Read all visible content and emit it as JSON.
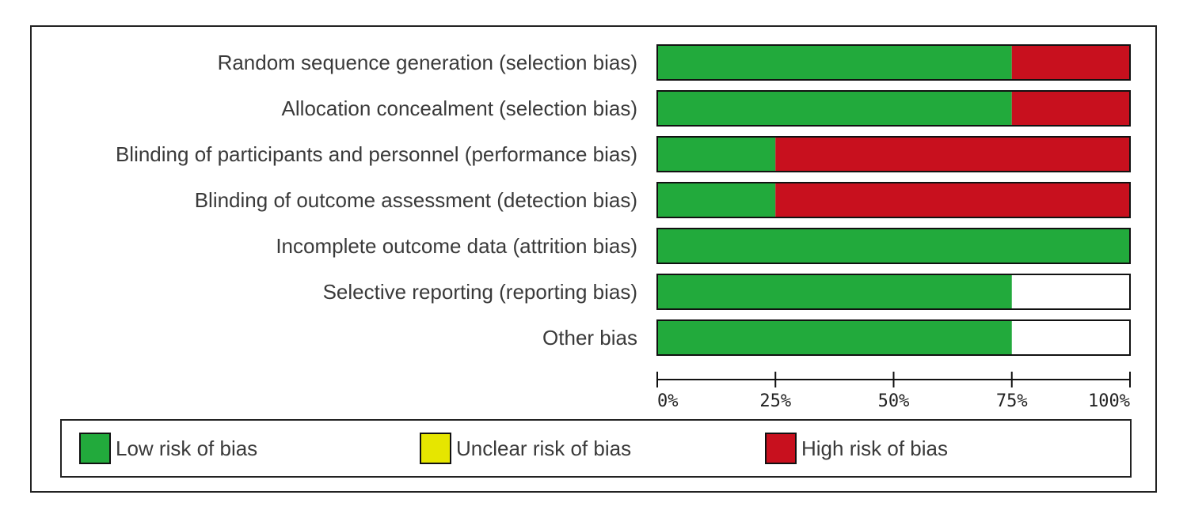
{
  "chart_data": {
    "type": "bar",
    "stacked": true,
    "orientation": "horizontal",
    "categories": [
      "Random sequence generation (selection bias)",
      "Allocation concealment (selection bias)",
      "Blinding of participants and personnel (performance bias)",
      "Blinding of outcome assessment (detection bias)",
      "Incomplete outcome data (attrition bias)",
      "Selective reporting (reporting bias)",
      "Other bias"
    ],
    "series": [
      {
        "name": "Low risk of bias",
        "color": "#22aa3c",
        "values": [
          75,
          75,
          25,
          25,
          100,
          75,
          75
        ]
      },
      {
        "name": "Unclear risk of bias",
        "color": "#e6e600",
        "values": [
          0,
          0,
          0,
          0,
          0,
          0,
          0
        ]
      },
      {
        "name": "High risk of bias",
        "color": "#c8101e",
        "values": [
          25,
          25,
          75,
          75,
          0,
          0,
          0
        ]
      }
    ],
    "xlim": [
      0,
      100
    ],
    "xticks": [
      "0%",
      "25%",
      "50%",
      "75%",
      "100%"
    ],
    "legend_position": "bottom"
  },
  "legend": {
    "items": [
      {
        "label": "Low risk of bias",
        "color": "#22aa3c"
      },
      {
        "label": "Unclear risk of bias",
        "color": "#e6e600"
      },
      {
        "label": "High risk of bias",
        "color": "#c8101e"
      }
    ]
  }
}
